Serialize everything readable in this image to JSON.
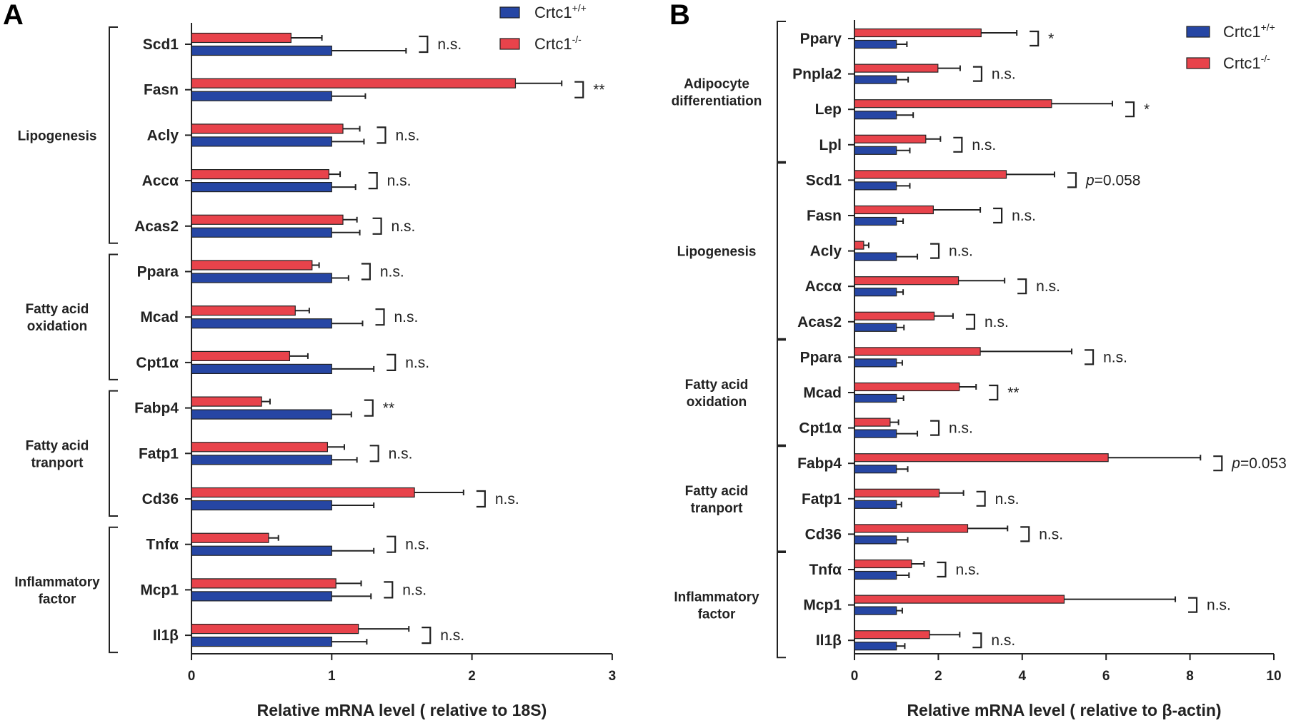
{
  "chart_data": [
    {
      "type": "bar",
      "orientation": "horizontal",
      "panel": "A",
      "xlabel": "Relative mRNA level ( relative to 18S)",
      "xlim": [
        0,
        3
      ],
      "xticks": [
        "0",
        "1",
        "2",
        "3"
      ],
      "legend": {
        "position": "top-right",
        "entries": [
          {
            "base": "Crtc1",
            "sup": "+/+",
            "color": "#2646a4"
          },
          {
            "base": "Crtc1",
            "sup": "-/-",
            "color": "#e8434b"
          }
        ]
      },
      "categories": [
        "Scd1",
        "Fasn",
        "Acly",
        "Accα",
        "Acas2",
        "Ppara",
        "Mcad",
        "Cpt1α",
        "Fabp4",
        "Fatp1",
        "Cd36",
        "Tnfα",
        "Mcp1",
        "Il1β"
      ],
      "series": [
        {
          "name": "Crtc1-/-",
          "color": "#e8434b",
          "values": [
            0.71,
            2.31,
            1.08,
            0.98,
            1.08,
            0.86,
            0.74,
            0.7,
            0.5,
            0.97,
            1.59,
            0.55,
            1.03,
            1.19
          ],
          "errors": [
            0.22,
            0.33,
            0.12,
            0.08,
            0.1,
            0.05,
            0.1,
            0.13,
            0.06,
            0.12,
            0.35,
            0.07,
            0.18,
            0.36
          ]
        },
        {
          "name": "Crtc1+/+",
          "color": "#2646a4",
          "values": [
            1,
            1,
            1,
            1,
            1,
            1,
            1,
            1,
            1,
            1,
            1,
            1,
            1,
            1
          ],
          "errors": [
            0.53,
            0.24,
            0.23,
            0.17,
            0.2,
            0.12,
            0.22,
            0.3,
            0.14,
            0.18,
            0.3,
            0.3,
            0.28,
            0.25
          ]
        }
      ],
      "significance": [
        "n.s.",
        "**",
        "n.s.",
        "n.s.",
        "n.s.",
        "n.s.",
        "n.s.",
        "n.s.",
        "**",
        "n.s.",
        "n.s.",
        "n.s.",
        "n.s.",
        "n.s."
      ],
      "sig_italic_p": [
        false,
        false,
        false,
        false,
        false,
        false,
        false,
        false,
        false,
        false,
        false,
        false,
        false,
        false
      ],
      "groups": [
        {
          "lines": [
            "Lipogenesis"
          ],
          "start": 0,
          "end": 4
        },
        {
          "lines": [
            "Fatty acid",
            "oxidation"
          ],
          "start": 5,
          "end": 7
        },
        {
          "lines": [
            "Fatty acid",
            "tranport"
          ],
          "start": 8,
          "end": 10
        },
        {
          "lines": [
            "Inflammatory",
            "factor"
          ],
          "start": 11,
          "end": 13
        }
      ]
    },
    {
      "type": "bar",
      "orientation": "horizontal",
      "panel": "B",
      "xlabel": "Relative mRNA level ( relative to β-actin)",
      "xlim": [
        0,
        10
      ],
      "xticks": [
        "0",
        "2",
        "4",
        "6",
        "8",
        "10"
      ],
      "legend": {
        "position": "top-right",
        "entries": [
          {
            "base": "Crtc1",
            "sup": "+/+",
            "color": "#2646a4"
          },
          {
            "base": "Crtc1",
            "sup": "-/-",
            "color": "#e8434b"
          }
        ]
      },
      "categories": [
        "Pparγ",
        "Pnpla2",
        "Lep",
        "Lpl",
        "Scd1",
        "Fasn",
        "Acly",
        "Accα",
        "Acas2",
        "Ppara",
        "Mcad",
        "Cpt1α",
        "Fabp4",
        "Fatp1",
        "Cd36",
        "Tnfα",
        "Mcp1",
        "Il1β"
      ],
      "series": [
        {
          "name": "Crtc1-/-",
          "color": "#e8434b",
          "values": [
            3.02,
            1.99,
            4.7,
            1.7,
            3.62,
            1.88,
            0.22,
            2.48,
            1.9,
            3.0,
            2.5,
            0.85,
            6.05,
            2.02,
            2.7,
            1.36,
            5.0,
            1.79
          ],
          "errors": [
            0.85,
            0.53,
            1.45,
            0.35,
            1.15,
            1.12,
            0.12,
            1.1,
            0.45,
            2.18,
            0.4,
            0.2,
            2.2,
            0.58,
            0.95,
            0.3,
            2.65,
            0.72
          ]
        },
        {
          "name": "Crtc1+/+",
          "color": "#2646a4",
          "values": [
            1,
            1,
            1,
            1,
            1,
            1,
            1,
            1,
            1,
            1,
            1,
            1,
            1,
            1,
            1,
            1,
            1,
            1
          ],
          "errors": [
            0.25,
            0.28,
            0.4,
            0.32,
            0.32,
            0.16,
            0.5,
            0.16,
            0.18,
            0.14,
            0.17,
            0.5,
            0.27,
            0.12,
            0.27,
            0.3,
            0.14,
            0.2
          ]
        }
      ],
      "significance": [
        "*",
        "n.s.",
        "*",
        "n.s.",
        "=0.058",
        "n.s.",
        "n.s.",
        "n.s.",
        "n.s.",
        "n.s.",
        "**",
        "n.s.",
        "=0.053",
        "n.s.",
        "n.s.",
        "n.s.",
        "n.s.",
        "n.s."
      ],
      "sig_italic_p": [
        false,
        false,
        false,
        false,
        true,
        false,
        false,
        false,
        false,
        false,
        false,
        false,
        true,
        false,
        false,
        false,
        false,
        false
      ],
      "groups": [
        {
          "lines": [
            "Adipocyte",
            "differentiation"
          ],
          "start": 0,
          "end": 3
        },
        {
          "lines": [
            "Lipogenesis"
          ],
          "start": 4,
          "end": 8
        },
        {
          "lines": [
            "Fatty acid",
            "oxidation"
          ],
          "start": 9,
          "end": 11
        },
        {
          "lines": [
            "Fatty acid",
            "tranport"
          ],
          "start": 12,
          "end": 14
        },
        {
          "lines": [
            "Inflammatory",
            "factor"
          ],
          "start": 15,
          "end": 17
        }
      ]
    }
  ]
}
